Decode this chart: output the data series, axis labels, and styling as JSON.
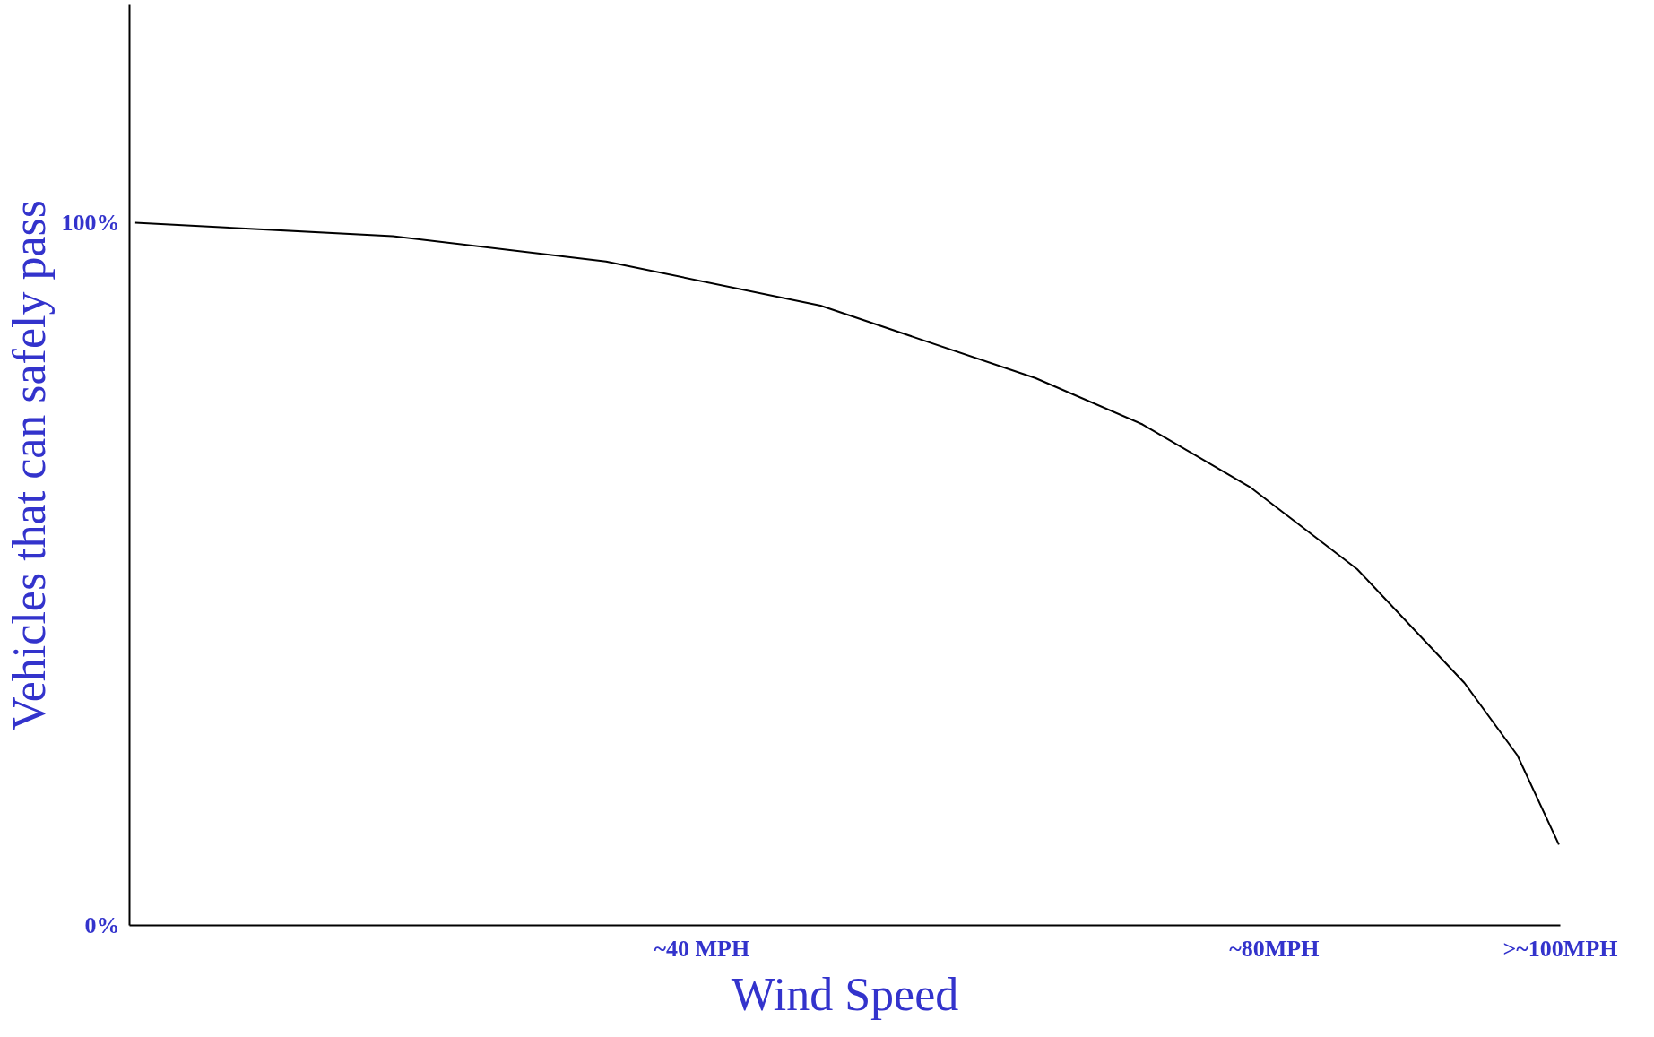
{
  "chart_data": {
    "type": "line",
    "xlabel": "Wind Speed",
    "ylabel": "Vehicles that can safely pass",
    "x": [
      0.4,
      18.4,
      33.3,
      48.3,
      63.3,
      70.8,
      78.3,
      85.8,
      93.3,
      97.0,
      99.9
    ],
    "series": [
      {
        "color": "#000000",
        "values": [
          100,
          98.1,
          94.5,
          88.2,
          77.9,
          71.3,
          62.4,
          50.7,
          34.5,
          24.2,
          11.5
        ]
      }
    ],
    "xlim": [
      0,
      100
    ],
    "ylim": [
      0,
      131
    ],
    "xticks": [
      {
        "value": 40,
        "label": "~40 MPH"
      },
      {
        "value": 80,
        "label": "~80MPH"
      },
      {
        "value": 100,
        "label": ">~100MPH"
      }
    ],
    "yticks": [
      {
        "value": 0,
        "label": "0%"
      },
      {
        "value": 100,
        "label": "100%"
      }
    ],
    "grid": false,
    "marker": "none",
    "line_style": "solid"
  }
}
